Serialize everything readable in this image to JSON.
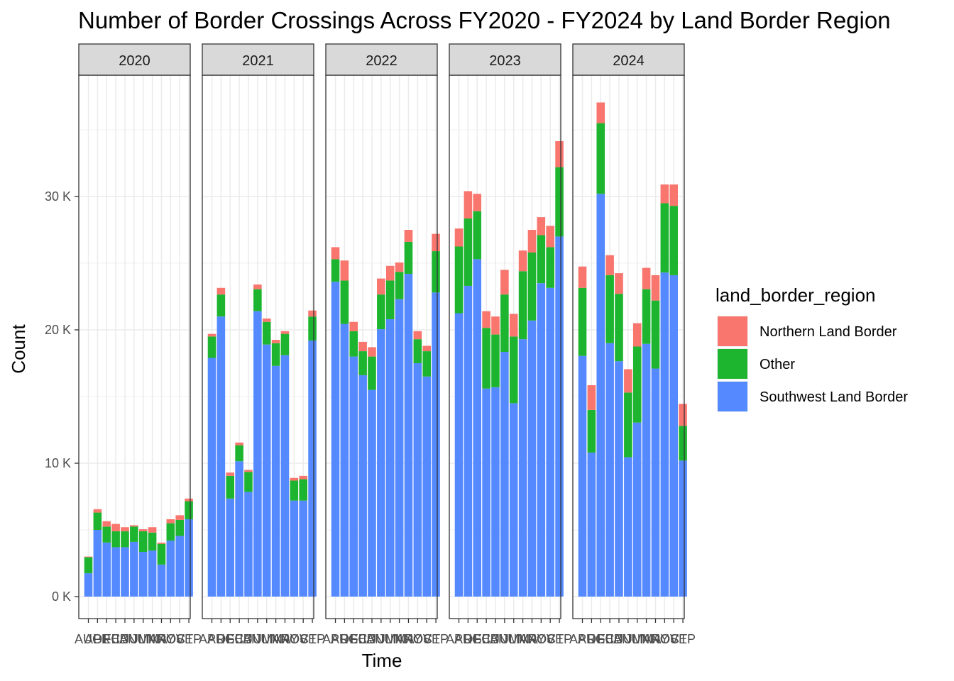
{
  "chart_data": {
    "type": "bar",
    "stacked": true,
    "title": "Number of Border Crossings Across FY2020 - FY2024 by Land Border Region",
    "xlabel": "Time",
    "ylabel": "Count",
    "ylim": [
      0,
      38700
    ],
    "y_ticks": [
      0,
      10000,
      20000,
      30000
    ],
    "y_tick_labels": [
      "0 K",
      "10 K",
      "20 K",
      "30 K"
    ],
    "x_tick_labels": [
      "AUG",
      "APR",
      "DEC",
      "FEB",
      "JAN",
      "JUL",
      "JUN",
      "MAR",
      "MAY",
      "NOV",
      "OCT",
      "SEP"
    ],
    "grid": true,
    "legend": {
      "title": "land_border_region",
      "position": "right",
      "entries": [
        "Northern Land Border",
        "Other",
        "Southwest Land Border"
      ]
    },
    "colors": {
      "Northern Land Border": "#F8766D",
      "Other": "#1DB52F",
      "Southwest Land Border": "#5589FF"
    },
    "facets": [
      {
        "label": "2020",
        "months": [
          "AUG",
          "APR",
          "DEC",
          "FEB",
          "JAN",
          "JUL",
          "JUN",
          "MAR",
          "MAY",
          "NOV",
          "OCT",
          "SEP"
        ],
        "southwest": [
          1750,
          5000,
          4050,
          3700,
          3700,
          4100,
          3350,
          3450,
          2400,
          4200,
          4550,
          5800
        ],
        "other": [
          1200,
          1300,
          1200,
          1200,
          1200,
          1150,
          1550,
          1350,
          1550,
          1300,
          1200,
          1350
        ],
        "northern": [
          50,
          250,
          400,
          550,
          300,
          100,
          150,
          400,
          100,
          300,
          350,
          200
        ]
      },
      {
        "label": "2021",
        "months": [
          "APR",
          "AUG",
          "DEC",
          "FEB",
          "JAN",
          "JUL",
          "JUN",
          "MAR",
          "MAY",
          "NOV",
          "OCT",
          "SEP"
        ],
        "southwest": [
          17900,
          21000,
          7350,
          10150,
          7850,
          21400,
          18900,
          17300,
          18100,
          7200,
          7200,
          19200
        ],
        "other": [
          1600,
          1650,
          1700,
          1200,
          1500,
          1650,
          1700,
          1700,
          1600,
          1500,
          1600,
          1800
        ],
        "northern": [
          200,
          500,
          250,
          200,
          150,
          350,
          250,
          250,
          200,
          200,
          250,
          450
        ]
      },
      {
        "label": "2022",
        "months": [
          "APR",
          "AUG",
          "DEC",
          "FEB",
          "JAN",
          "JUL",
          "JUN",
          "MAR",
          "MAY",
          "NOV",
          "OCT",
          "SEP"
        ],
        "southwest": [
          23600,
          20450,
          18000,
          16600,
          15500,
          20050,
          20800,
          22300,
          24200,
          17500,
          16500,
          22800
        ],
        "other": [
          1700,
          3250,
          1900,
          1800,
          2500,
          2600,
          2900,
          2050,
          2400,
          1800,
          1900,
          3100
        ],
        "northern": [
          900,
          1500,
          700,
          700,
          700,
          1200,
          1100,
          700,
          900,
          600,
          400,
          1300
        ]
      },
      {
        "label": "2023",
        "months": [
          "APR",
          "AUG",
          "DEC",
          "FEB",
          "JAN",
          "JUL",
          "JUN",
          "MAR",
          "MAY",
          "NOV",
          "OCT",
          "SEP"
        ],
        "southwest": [
          21250,
          23300,
          25300,
          15600,
          15700,
          18350,
          14500,
          19300,
          20700,
          23500,
          23150,
          27000
        ],
        "other": [
          5000,
          5050,
          3600,
          4550,
          3950,
          4300,
          5000,
          5100,
          5100,
          3600,
          3050,
          5200
        ],
        "northern": [
          1350,
          2050,
          1300,
          1250,
          1350,
          1850,
          1700,
          1550,
          1700,
          1350,
          1600,
          1950
        ]
      },
      {
        "label": "2024",
        "months": [
          "APR",
          "AUG",
          "DEC",
          "FEB",
          "JAN",
          "JUL",
          "JUN",
          "MAR",
          "MAY",
          "NOV",
          "OCT",
          "SEP"
        ],
        "southwest": [
          18050,
          10800,
          30200,
          19000,
          17650,
          10450,
          13050,
          18950,
          17100,
          24300,
          24100,
          10200
        ],
        "other": [
          5100,
          3200,
          5300,
          5100,
          5050,
          4850,
          5700,
          4100,
          5100,
          5200,
          5200,
          2600
        ],
        "northern": [
          1600,
          1850,
          1550,
          1500,
          1550,
          1750,
          1750,
          1600,
          1900,
          1400,
          1600,
          1650
        ]
      }
    ]
  }
}
